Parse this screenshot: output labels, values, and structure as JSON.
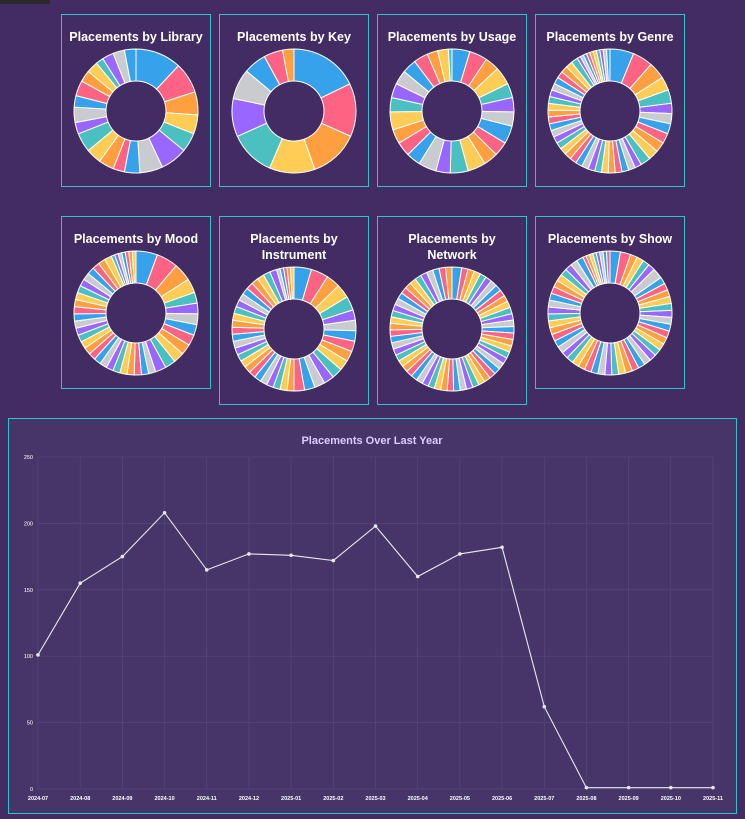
{
  "chart_data": [
    {
      "type": "doughnut",
      "title": "Placements by Library",
      "colors": [
        "#36a2eb",
        "#ff6384",
        "#ff9f40",
        "#ffcd56",
        "#4bc0c0",
        "#9966ff",
        "#c9cbcf"
      ],
      "values": [
        12,
        8,
        6,
        5,
        5,
        7,
        6,
        4,
        3,
        4,
        4,
        5,
        3,
        4,
        3,
        4,
        3,
        3,
        2,
        3,
        3,
        3
      ]
    },
    {
      "type": "doughnut",
      "title": "Placements by Key",
      "colors": [
        "#36a2eb",
        "#ff6384",
        "#ff9f40",
        "#ffcd56",
        "#4bc0c0",
        "#9966ff",
        "#c9cbcf"
      ],
      "values": [
        18,
        14,
        13,
        12,
        12,
        10,
        8,
        6,
        5,
        3
      ]
    },
    {
      "type": "doughnut",
      "title": "Placements by Usage",
      "colors": [
        "#36a2eb",
        "#ff6384",
        "#ff9f40",
        "#ffcd56",
        "#4bc0c0",
        "#9966ff",
        "#c9cbcf"
      ],
      "values": [
        5,
        5,
        4,
        5,
        4,
        4,
        4,
        5,
        4,
        4,
        5,
        5,
        4,
        5,
        4,
        4,
        4,
        5,
        4,
        4,
        4,
        4,
        4,
        3,
        3,
        1
      ]
    },
    {
      "type": "doughnut",
      "title": "Placements by Genre",
      "colors": [
        "#36a2eb",
        "#ff6384",
        "#ff9f40",
        "#ffcd56",
        "#4bc0c0",
        "#9966ff",
        "#c9cbcf"
      ],
      "values": [
        7,
        6,
        5,
        4,
        4,
        3,
        3,
        3,
        3,
        3,
        3,
        3,
        2,
        2,
        2,
        2,
        2,
        2,
        2,
        2,
        2,
        2,
        2,
        2,
        2,
        2,
        2,
        2,
        2,
        2,
        2,
        2,
        2,
        2,
        2,
        2,
        2,
        2,
        2,
        2,
        1,
        1,
        1,
        1,
        1,
        1,
        1,
        1,
        1,
        1
      ]
    },
    {
      "type": "doughnut",
      "title": "Placements by Mood",
      "colors": [
        "#36a2eb",
        "#ff6384",
        "#ff9f40",
        "#ffcd56",
        "#4bc0c0",
        "#9966ff",
        "#c9cbcf"
      ],
      "values": [
        6,
        6,
        5,
        4,
        3,
        3,
        3,
        3,
        3,
        3,
        3,
        3,
        3,
        2,
        2,
        2,
        2,
        2,
        2,
        2,
        2,
        2,
        2,
        2,
        2,
        2,
        2,
        2,
        2,
        2,
        2,
        2,
        2,
        2,
        2,
        2,
        2,
        2,
        2,
        1,
        1,
        1,
        1,
        1,
        1,
        1
      ]
    },
    {
      "type": "doughnut",
      "title": "Placements by Instrument",
      "colors": [
        "#36a2eb",
        "#ff6384",
        "#ff9f40",
        "#ffcd56",
        "#4bc0c0",
        "#9966ff",
        "#c9cbcf"
      ],
      "values": [
        5,
        5,
        4,
        4,
        4,
        3,
        3,
        3,
        3,
        3,
        3,
        3,
        3,
        3,
        3,
        3,
        2,
        2,
        2,
        2,
        2,
        2,
        2,
        2,
        2,
        2,
        2,
        2,
        2,
        2,
        2,
        2,
        2,
        2,
        2,
        2,
        2,
        2,
        2,
        2,
        2,
        1,
        1,
        1,
        1,
        1
      ]
    },
    {
      "type": "doughnut",
      "title": "Placements by Network",
      "colors": [
        "#36a2eb",
        "#ff6384",
        "#ff9f40",
        "#ffcd56",
        "#4bc0c0",
        "#9966ff",
        "#c9cbcf"
      ],
      "values": [
        3,
        2,
        2,
        2,
        2,
        2,
        2,
        2,
        2,
        2,
        2,
        2,
        2,
        2,
        2,
        2,
        2,
        2,
        2,
        2,
        2,
        2,
        2,
        2,
        2,
        2,
        2,
        2,
        2,
        2,
        2,
        2,
        2,
        2,
        2,
        2,
        2,
        2,
        2,
        2,
        2,
        2,
        2,
        2,
        2,
        2,
        2,
        2,
        2,
        2,
        2,
        2,
        2,
        2,
        2,
        2,
        2,
        2,
        2
      ]
    },
    {
      "type": "doughnut",
      "title": "Placements by Show",
      "colors": [
        "#36a2eb",
        "#ff6384",
        "#ff9f40",
        "#ffcd56",
        "#4bc0c0",
        "#9966ff",
        "#c9cbcf"
      ],
      "values": [
        3,
        3,
        2,
        2,
        2,
        2,
        3,
        2,
        2,
        2,
        2,
        2,
        2,
        2,
        2,
        2,
        2,
        2,
        2,
        2,
        2,
        2,
        2,
        2,
        2,
        2,
        2,
        2,
        2,
        2,
        2,
        2,
        2,
        2,
        2,
        2,
        2,
        2,
        2,
        2,
        2,
        2,
        2,
        2,
        2,
        2,
        2,
        2,
        2,
        2,
        1,
        1,
        1,
        1,
        1,
        1,
        1,
        1
      ]
    },
    {
      "type": "line",
      "title": "Placements Over Last Year",
      "color": "#e8e8ee",
      "x": [
        "2024-07",
        "2024-08",
        "2024-09",
        "2024-10",
        "2024-11",
        "2024-12",
        "2025-01",
        "2025-02",
        "2025-03",
        "2025-04",
        "2025-05",
        "2025-06",
        "2025-07",
        "2025-08",
        "2025-09",
        "2025-10",
        "2025-11"
      ],
      "values": [
        101,
        155,
        175,
        208,
        165,
        177,
        176,
        172,
        198,
        160,
        177,
        182,
        62,
        1,
        1,
        1,
        1
      ],
      "ylim": [
        0,
        250
      ],
      "yticks": [
        0,
        50,
        100,
        150,
        200,
        250
      ],
      "grid": true
    }
  ]
}
